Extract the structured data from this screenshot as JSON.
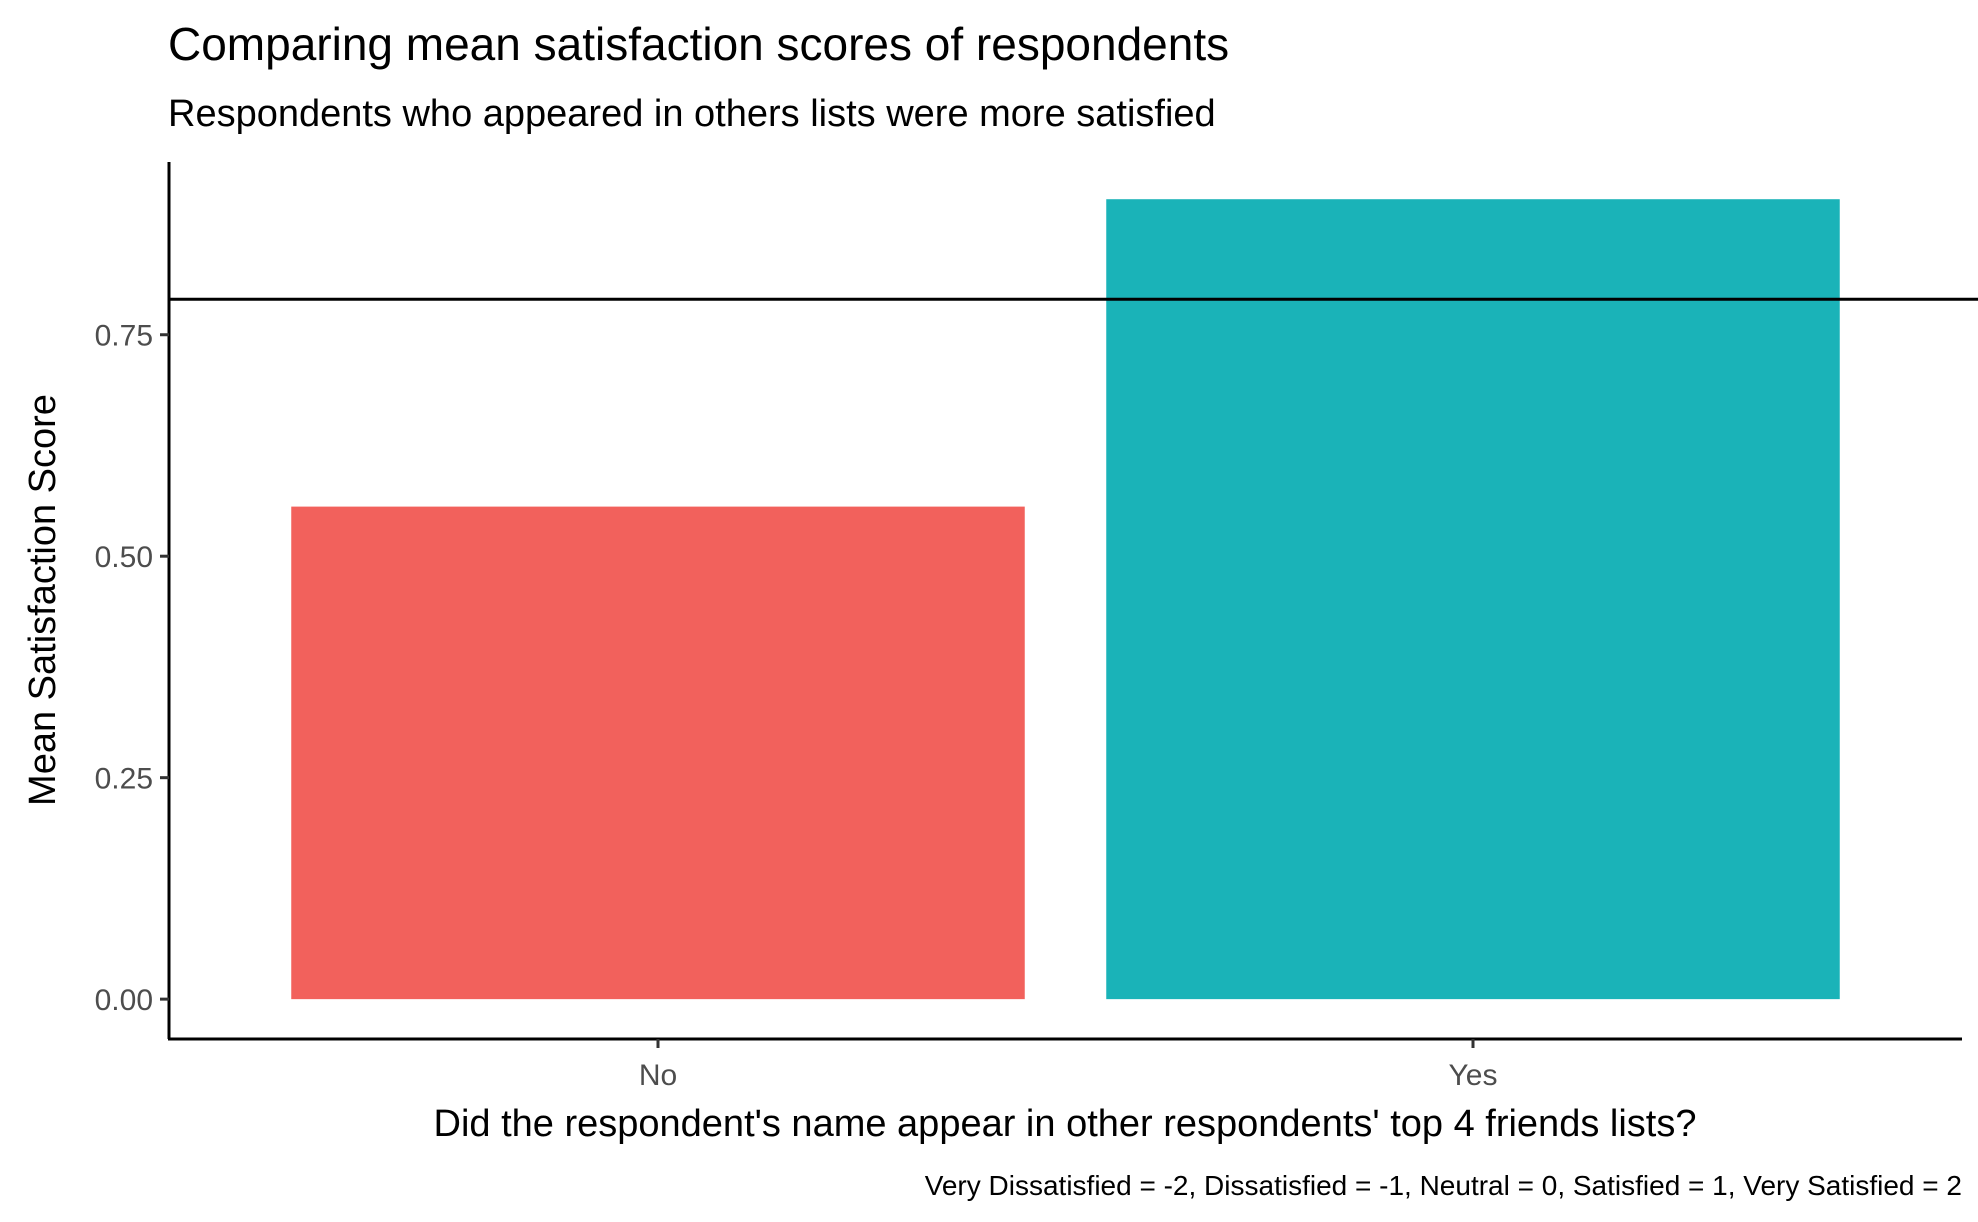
{
  "chart_data": {
    "type": "bar",
    "title": "Comparing mean satisfaction scores of respondents",
    "subtitle": "Respondents who appeared in others lists were more satisfied",
    "xlabel": "Did the respondent's name appear in other respondents' top 4 friends lists?",
    "ylabel": "Mean Satisfaction Score",
    "caption": "Very Dissatisfied = -2, Dissatisfied = -1, Neutral = 0, Satisfied = 1, Very Satisfied = 2",
    "categories": [
      "No",
      "Yes"
    ],
    "values": [
      0.556,
      0.903
    ],
    "colors": [
      "#F2615C",
      "#1AB3B8"
    ],
    "ylim": [
      -0.045,
      0.945
    ],
    "yticks": [
      0,
      0.25,
      0.5,
      0.75
    ],
    "ytick_labels": [
      "0.00",
      "0.25",
      "0.50",
      "0.75"
    ],
    "reference_line": 0.79,
    "grid": false,
    "legend": "none"
  }
}
